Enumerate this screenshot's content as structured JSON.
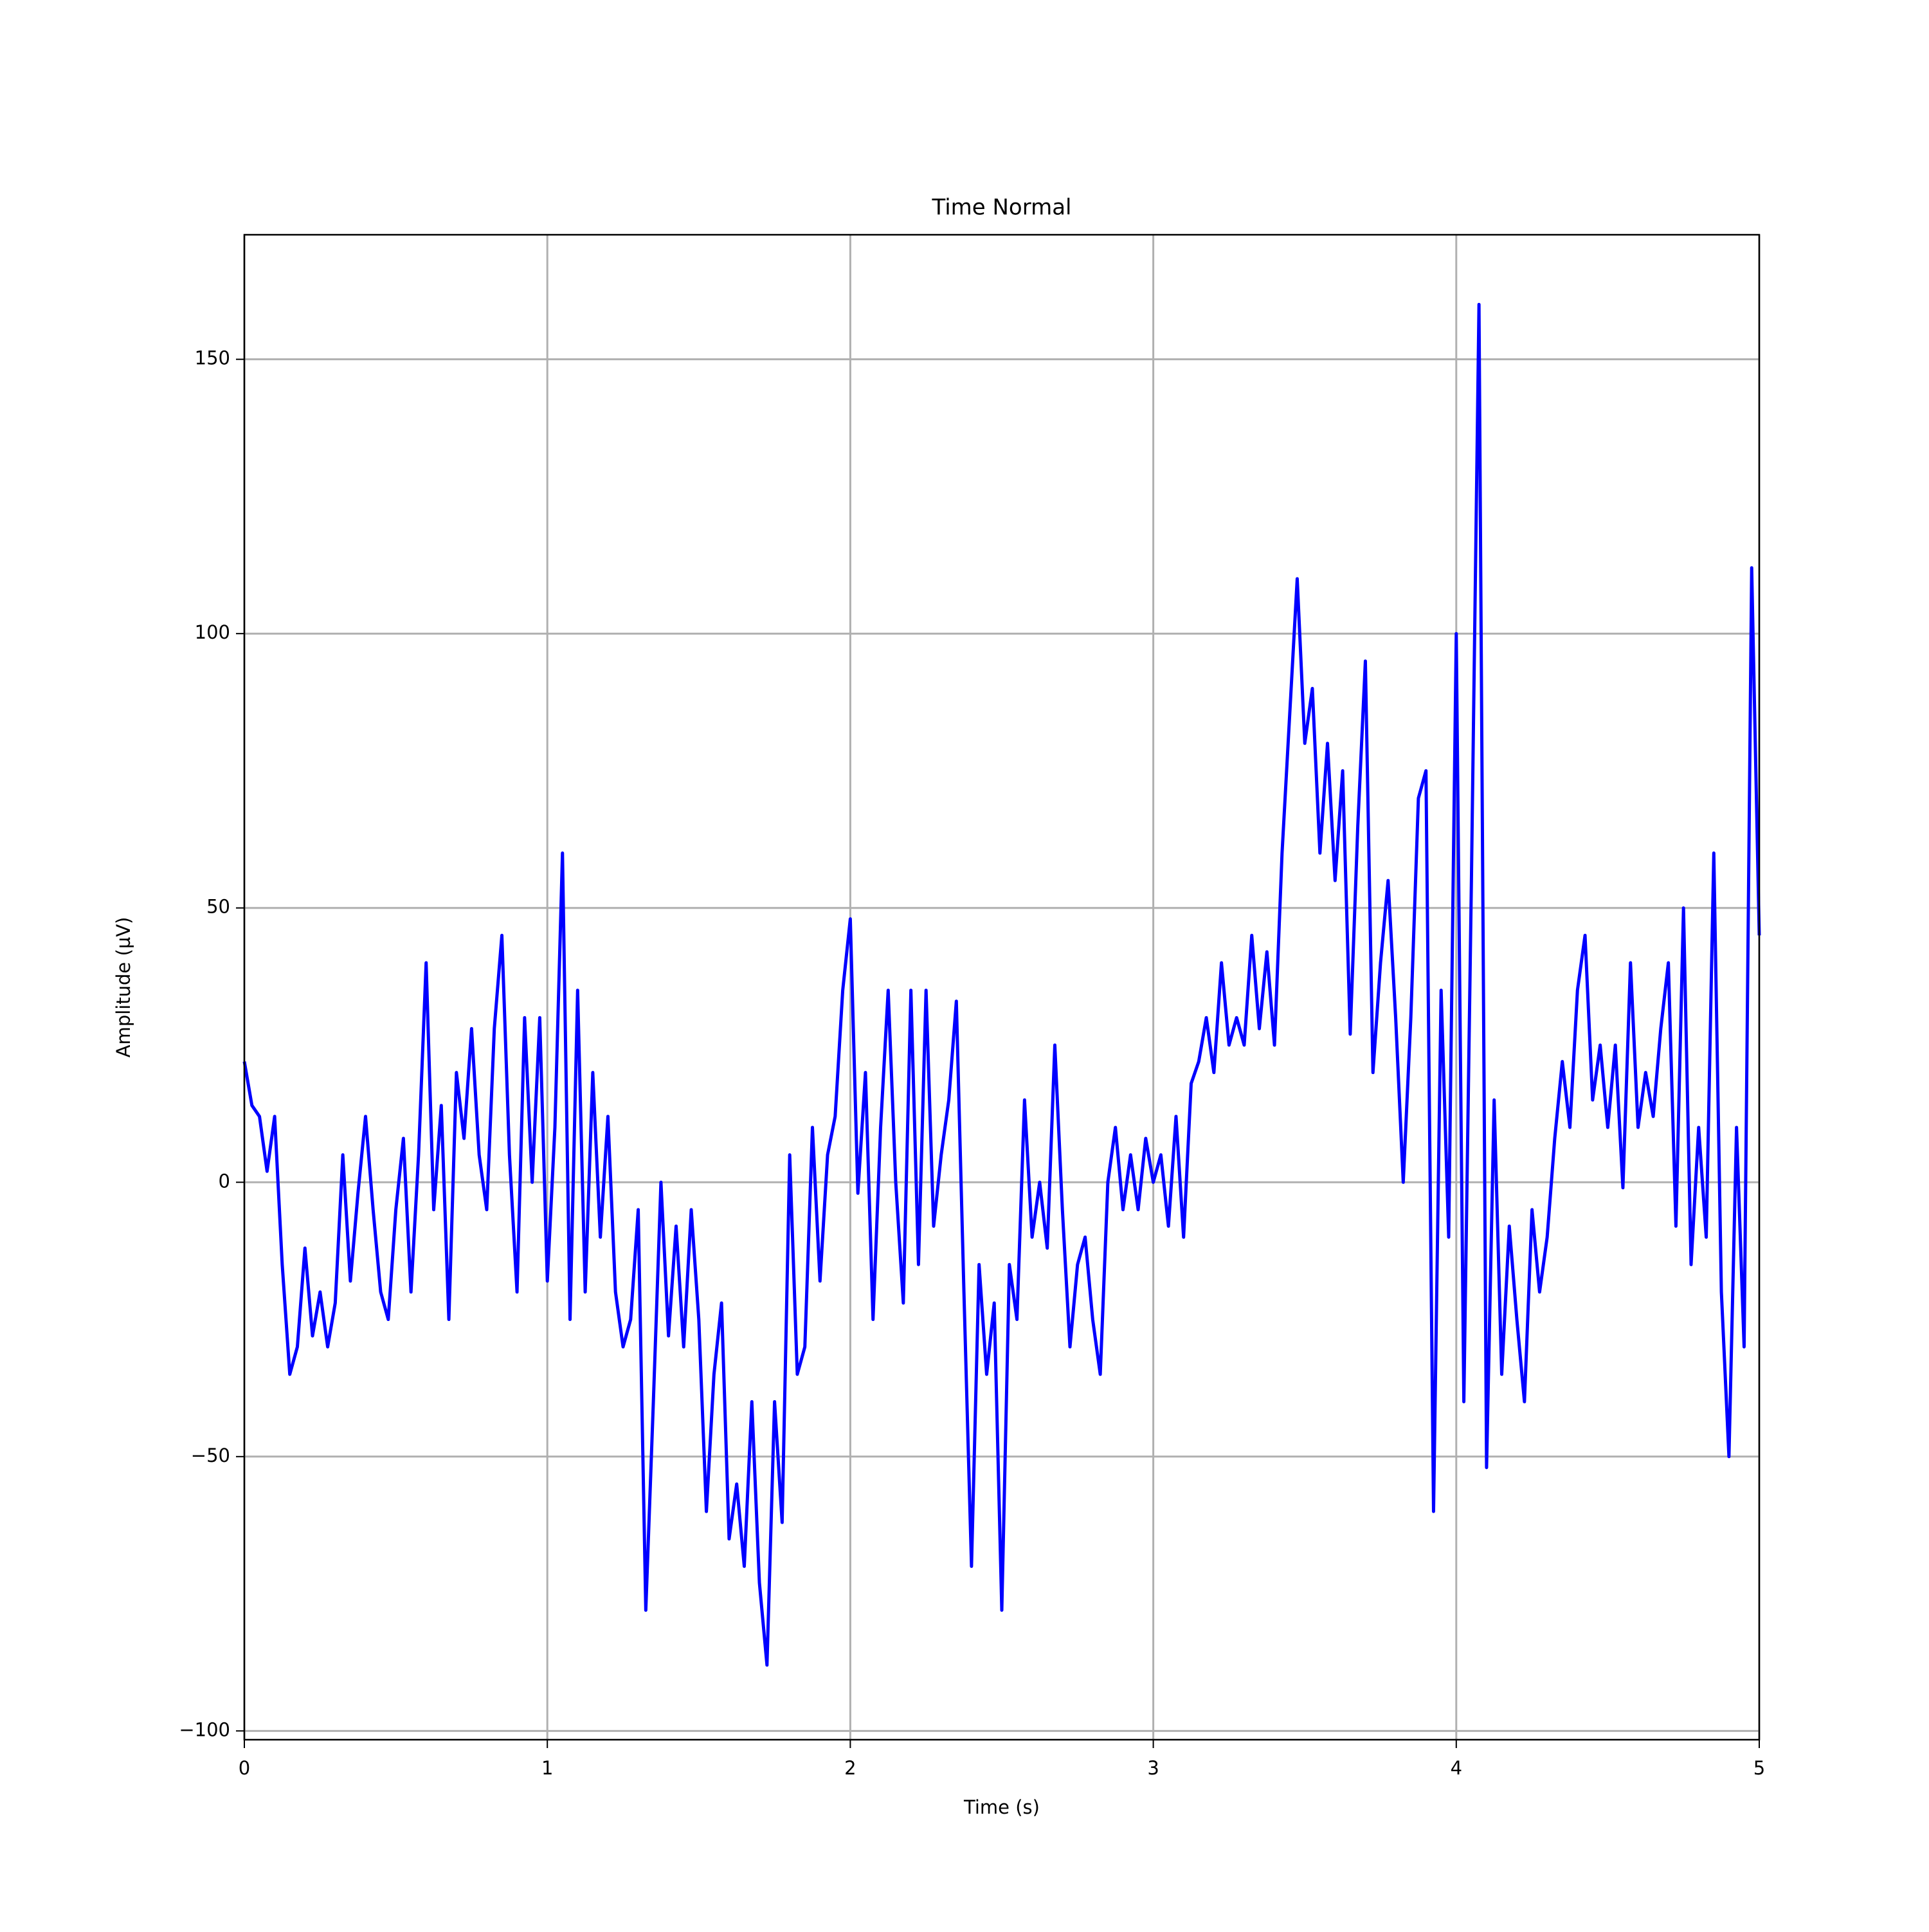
{
  "chart_data": {
    "type": "line",
    "title": "Time Normal",
    "x_label": "Time (s)",
    "y_label": "Amplitude (µV)",
    "color": "#0000ff",
    "grid": true,
    "xlim": [
      0,
      5
    ],
    "ylim": [
      -101.6,
      172.7
    ],
    "xticks": [
      0,
      1,
      2,
      3,
      4,
      5
    ],
    "yticks": [
      {
        "value": -100,
        "label": "−100"
      },
      {
        "value": -50,
        "label": "−50"
      },
      0,
      50,
      100,
      150
    ],
    "x": [
      0,
      0.025,
      0.05,
      0.075,
      0.1,
      0.125,
      0.15,
      0.175,
      0.2,
      0.225,
      0.25,
      0.275,
      0.3,
      0.325,
      0.35,
      0.375,
      0.4,
      0.425,
      0.45,
      0.475,
      0.5,
      0.525,
      0.55,
      0.575,
      0.6,
      0.625,
      0.65,
      0.675,
      0.7,
      0.725,
      0.75,
      0.775,
      0.8,
      0.825,
      0.85,
      0.875,
      0.9,
      0.925,
      0.95,
      0.975,
      1,
      1.025,
      1.05,
      1.075,
      1.1,
      1.125,
      1.15,
      1.175,
      1.2,
      1.225,
      1.25,
      1.275,
      1.3,
      1.325,
      1.35,
      1.375,
      1.4,
      1.425,
      1.45,
      1.475,
      1.5,
      1.525,
      1.55,
      1.575,
      1.6,
      1.625,
      1.65,
      1.675,
      1.7,
      1.725,
      1.75,
      1.775,
      1.8,
      1.825,
      1.85,
      1.875,
      1.9,
      1.925,
      1.95,
      1.975,
      2,
      2.025,
      2.05,
      2.075,
      2.1,
      2.125,
      2.15,
      2.175,
      2.2,
      2.225,
      2.25,
      2.275,
      2.3,
      2.325,
      2.35,
      2.375,
      2.4,
      2.425,
      2.45,
      2.475,
      2.5,
      2.525,
      2.55,
      2.575,
      2.6,
      2.625,
      2.65,
      2.675,
      2.7,
      2.725,
      2.75,
      2.775,
      2.8,
      2.825,
      2.85,
      2.875,
      2.9,
      2.925,
      2.95,
      2.975,
      3,
      3.025,
      3.05,
      3.075,
      3.1,
      3.125,
      3.15,
      3.175,
      3.2,
      3.225,
      3.25,
      3.275,
      3.3,
      3.325,
      3.35,
      3.375,
      3.4,
      3.425,
      3.45,
      3.475,
      3.5,
      3.525,
      3.55,
      3.575,
      3.6,
      3.625,
      3.65,
      3.675,
      3.7,
      3.725,
      3.75,
      3.775,
      3.8,
      3.825,
      3.85,
      3.875,
      3.9,
      3.925,
      3.95,
      3.975,
      4,
      4.025,
      4.05,
      4.075,
      4.1,
      4.125,
      4.15,
      4.175,
      4.2,
      4.225,
      4.25,
      4.275,
      4.3,
      4.325,
      4.35,
      4.375,
      4.4,
      4.425,
      4.45,
      4.475,
      4.5,
      4.525,
      4.55,
      4.575,
      4.6,
      4.625,
      4.65,
      4.675,
      4.7,
      4.725,
      4.75,
      4.775,
      4.8,
      4.825,
      4.85,
      4.875,
      4.9,
      4.925,
      4.95,
      4.975,
      5
    ],
    "values": [
      22,
      14,
      12,
      2,
      12,
      -15,
      -35,
      -30,
      -12,
      -28,
      -20,
      -30,
      -22,
      5,
      -18,
      -2,
      12,
      -5,
      -20,
      -25,
      -5,
      8,
      -20,
      5,
      40,
      -5,
      14,
      -25,
      20,
      8,
      28,
      5,
      -5,
      28,
      45,
      5,
      -20,
      30,
      0,
      30,
      -18,
      10,
      60,
      -25,
      35,
      -20,
      20,
      -10,
      12,
      -20,
      -30,
      -25,
      -5,
      -78,
      -40,
      0,
      -28,
      -8,
      -30,
      -5,
      -25,
      -60,
      -35,
      -22,
      -65,
      -55,
      -70,
      -40,
      -73,
      -88,
      -40,
      -62,
      5,
      -35,
      -30,
      10,
      -18,
      5,
      12,
      35,
      48,
      -2,
      20,
      -25,
      10,
      35,
      0,
      -22,
      35,
      -15,
      35,
      -8,
      5,
      15,
      33,
      -20,
      -70,
      -15,
      -35,
      -22,
      -78,
      -15,
      -25,
      15,
      -10,
      0,
      -12,
      25,
      -5,
      -30,
      -15,
      -10,
      -25,
      -35,
      0,
      10,
      -5,
      5,
      -5,
      8,
      0,
      5,
      -8,
      12,
      -10,
      18,
      22,
      30,
      20,
      40,
      25,
      30,
      25,
      45,
      28,
      42,
      25,
      60,
      85,
      110,
      80,
      90,
      60,
      80,
      55,
      75,
      27,
      65,
      95,
      20,
      40,
      55,
      30,
      0,
      30,
      70,
      75,
      -60,
      35,
      -10,
      100,
      -40,
      55,
      160,
      -52,
      15,
      -35,
      -8,
      -25,
      -40,
      -5,
      -20,
      -10,
      8,
      22,
      10,
      35,
      45,
      15,
      25,
      10,
      25,
      -1,
      40,
      10,
      20,
      12,
      28,
      40,
      -8,
      50,
      -15,
      10,
      -10,
      60,
      -20,
      -50,
      10,
      -30,
      112,
      45
    ]
  }
}
